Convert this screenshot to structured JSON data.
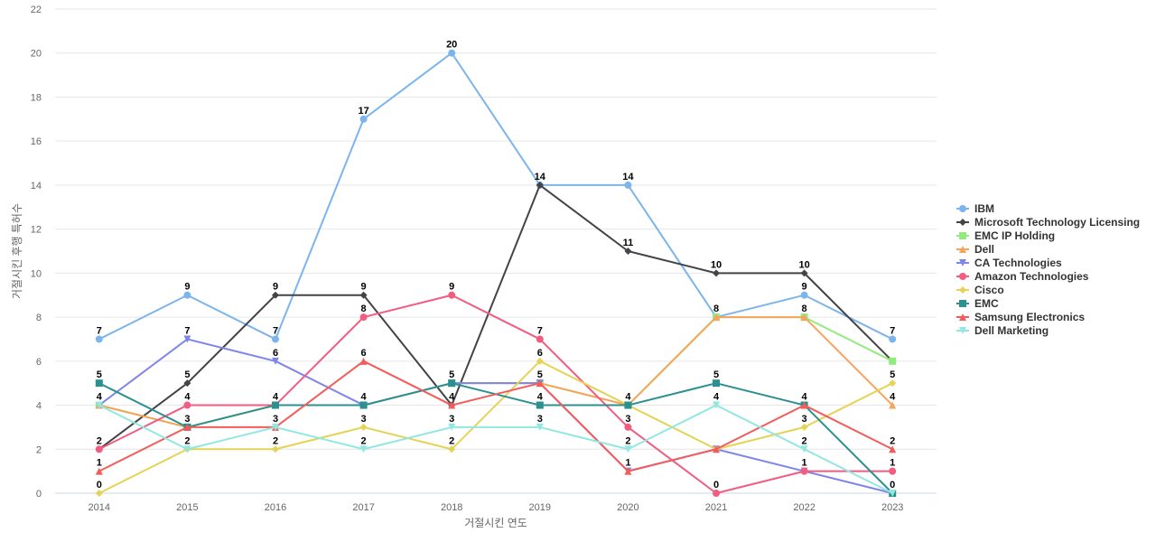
{
  "chart_data": {
    "type": "line",
    "title": "",
    "xlabel": "거절시킨 연도",
    "ylabel": "거절시킨 후행 특허수",
    "categories": [
      "2014",
      "2015",
      "2016",
      "2017",
      "2018",
      "2019",
      "2020",
      "2021",
      "2022",
      "2023"
    ],
    "ylim": [
      0,
      22
    ],
    "yticks": [
      0,
      2,
      4,
      6,
      8,
      10,
      12,
      14,
      16,
      18,
      20,
      22
    ],
    "grid": true,
    "legend_position": "right",
    "series": [
      {
        "name": "IBM",
        "color": "#7cb5ec",
        "marker": "circle",
        "values": [
          7,
          9,
          7,
          17,
          20,
          14,
          14,
          8,
          9,
          7
        ],
        "labels": [
          "7",
          "9",
          "7",
          "17",
          "20",
          "14",
          "14",
          "",
          "9",
          "7"
        ]
      },
      {
        "name": "Microsoft Technology Licensing",
        "color": "#434348",
        "marker": "diamond",
        "values": [
          2,
          5,
          9,
          9,
          4,
          14,
          11,
          10,
          10,
          6
        ],
        "labels": [
          "",
          "5",
          "9",
          "9",
          "",
          "",
          "11",
          "10",
          "10",
          ""
        ]
      },
      {
        "name": "EMC IP Holding",
        "color": "#90ed7d",
        "marker": "square",
        "values": [
          4,
          3,
          4,
          4,
          5,
          5,
          4,
          8,
          8,
          6
        ],
        "labels": [
          "",
          "",
          "",
          "",
          "",
          "",
          "",
          "",
          "",
          ""
        ]
      },
      {
        "name": "Dell",
        "color": "#f7a35c",
        "marker": "triangle",
        "values": [
          4,
          3,
          4,
          4,
          5,
          5,
          4,
          8,
          8,
          4
        ],
        "labels": [
          "",
          "",
          "",
          "",
          "",
          "",
          "",
          "8",
          "8",
          "4"
        ]
      },
      {
        "name": "CA Technologies",
        "color": "#8085e9",
        "marker": "triangle-down",
        "values": [
          4,
          7,
          6,
          4,
          5,
          5,
          1,
          2,
          1,
          0
        ],
        "labels": [
          "",
          "7",
          "6",
          "",
          "",
          "",
          "",
          "",
          "",
          ""
        ]
      },
      {
        "name": "Amazon Technologies",
        "color": "#f15c80",
        "marker": "circle",
        "values": [
          2,
          4,
          4,
          8,
          9,
          7,
          3,
          0,
          1,
          1
        ],
        "labels": [
          "2",
          "4",
          "",
          "8",
          "9",
          "7",
          "3",
          "0",
          "1",
          "1"
        ]
      },
      {
        "name": "Cisco",
        "color": "#e4d354",
        "marker": "diamond",
        "values": [
          0,
          2,
          2,
          3,
          2,
          6,
          4,
          2,
          3,
          5
        ],
        "labels": [
          "0",
          "",
          "2",
          "3",
          "2",
          "6",
          "",
          "",
          "3",
          "5"
        ]
      },
      {
        "name": "EMC",
        "color": "#2b908f",
        "marker": "square",
        "values": [
          5,
          3,
          4,
          4,
          5,
          4,
          4,
          5,
          4,
          0
        ],
        "labels": [
          "5",
          "3",
          "4",
          "4",
          "5",
          "4",
          "4",
          "5",
          "4",
          ""
        ]
      },
      {
        "name": "Samsung Electronics",
        "color": "#f45b5b",
        "marker": "triangle",
        "values": [
          1,
          3,
          3,
          6,
          4,
          5,
          1,
          2,
          4,
          2
        ],
        "labels": [
          "1",
          "",
          "",
          "6",
          "4",
          "5",
          "1",
          "",
          "",
          "2"
        ]
      },
      {
        "name": "Dell Marketing",
        "color": "#91e8e1",
        "marker": "triangle-down",
        "values": [
          4,
          2,
          3,
          2,
          3,
          3,
          2,
          4,
          2,
          0
        ],
        "labels": [
          "4",
          "2",
          "3",
          "2",
          "3",
          "3",
          "2",
          "4",
          "2",
          "0"
        ]
      }
    ]
  }
}
